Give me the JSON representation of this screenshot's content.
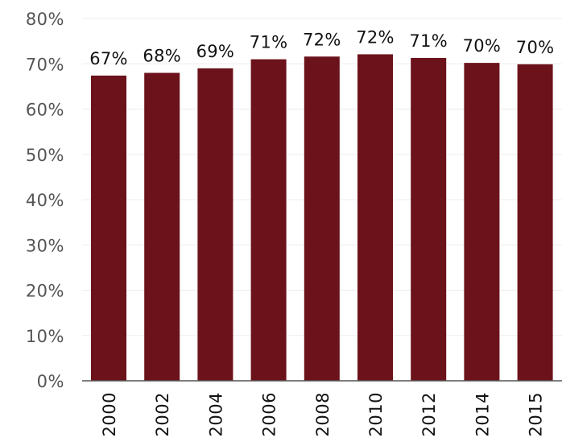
{
  "chart_data": {
    "type": "bar",
    "title": "",
    "xlabel": "",
    "ylabel": "",
    "categories": [
      "2000",
      "2002",
      "2004",
      "2006",
      "2008",
      "2010",
      "2012",
      "2014",
      "2015"
    ],
    "values": [
      67.4,
      68.0,
      69.0,
      71.0,
      71.6,
      72.1,
      71.3,
      70.2,
      69.9
    ],
    "data_labels": [
      "67%",
      "68%",
      "69%",
      "71%",
      "72%",
      "72%",
      "71%",
      "70%",
      "70%"
    ],
    "ylim": [
      0,
      80
    ],
    "yticks": [
      0,
      10,
      20,
      30,
      40,
      50,
      60,
      70,
      80
    ],
    "ytick_labels": [
      "0%",
      "10%",
      "20%",
      "30%",
      "40%",
      "50%",
      "60%",
      "70%",
      "80%"
    ],
    "x_tick_rotation": "vertical",
    "grid": true,
    "legend": "none",
    "colors": {
      "bar": "#6b121b",
      "grid": "#ededed",
      "axis": "#555555",
      "tick_label": "#555555",
      "data_label": "#111111"
    }
  }
}
